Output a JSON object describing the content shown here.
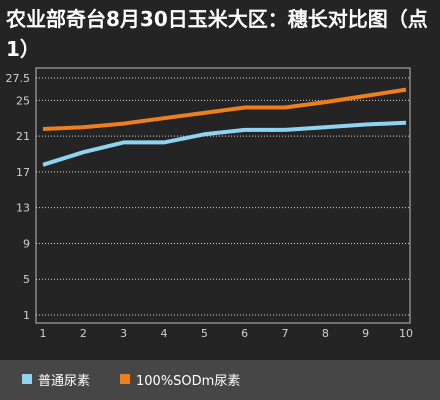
{
  "chart_data": {
    "type": "line",
    "title": "农业部奇台8月30日玉米大区：穗长对比图（点1）",
    "x": [
      1,
      2,
      3,
      4,
      5,
      6,
      7,
      8,
      9,
      10
    ],
    "y_ticks": [
      1,
      5,
      9,
      13,
      17,
      21,
      25,
      27.5
    ],
    "ylim": [
      1,
      27.5
    ],
    "grid": "horizontal dotted",
    "legend_position": "bottom",
    "series": [
      {
        "name": "普通尿素",
        "color": "#8ed3f2",
        "values": [
          17.8,
          19.2,
          20.3,
          20.3,
          21.2,
          21.7,
          21.7,
          22.0,
          22.3,
          22.5
        ]
      },
      {
        "name": "100%SODm尿素",
        "color": "#ee7f1e",
        "values": [
          21.8,
          22.0,
          22.4,
          23.0,
          23.6,
          24.2,
          24.2,
          24.8,
          25.5,
          26.2
        ]
      }
    ]
  }
}
